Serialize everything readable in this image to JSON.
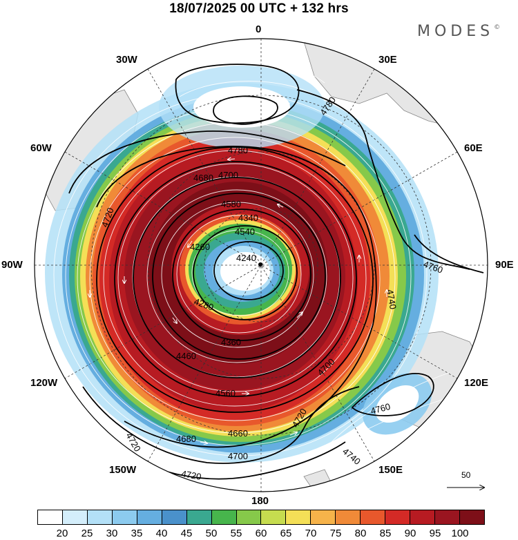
{
  "title": "18/07/2025  00 UTC  + 132 hrs",
  "brand": {
    "text": "MODES",
    "symbol": "©"
  },
  "longitude_labels": {
    "n": "0",
    "n30e": "30E",
    "n60e": "60E",
    "e": "90E",
    "s120e": "120E",
    "s150e": "150E",
    "s": "180",
    "s150w": "150W",
    "s120w": "120W",
    "w": "90W",
    "n60w": "60W",
    "n30w": "30W"
  },
  "contour_labels": [
    "4780",
    "4780",
    "4760",
    "4740",
    "4760",
    "4740",
    "4720",
    "4700",
    "4680",
    "4720",
    "4700",
    "4720",
    "4660",
    "4580",
    "4540",
    "4460",
    "4360",
    "4280",
    "4240",
    "4260",
    "4340",
    "4560",
    "4680",
    "4700",
    "4720"
  ],
  "reference_vector": {
    "value": "50"
  },
  "colorbar": {
    "ticks": [
      "20",
      "25",
      "30",
      "35",
      "40",
      "45",
      "50",
      "55",
      "60",
      "65",
      "70",
      "75",
      "80",
      "85",
      "90",
      "95",
      "100"
    ],
    "colors": [
      "#ffffff",
      "#d4eefb",
      "#b3e0f7",
      "#8ccbef",
      "#65aee0",
      "#4a91cb",
      "#3aa890",
      "#47b54c",
      "#86c94a",
      "#c6dc4f",
      "#f4df57",
      "#f6b34a",
      "#f08a38",
      "#e8582c",
      "#d42a26",
      "#b71b22",
      "#9a1520",
      "#7d0f18"
    ]
  }
}
